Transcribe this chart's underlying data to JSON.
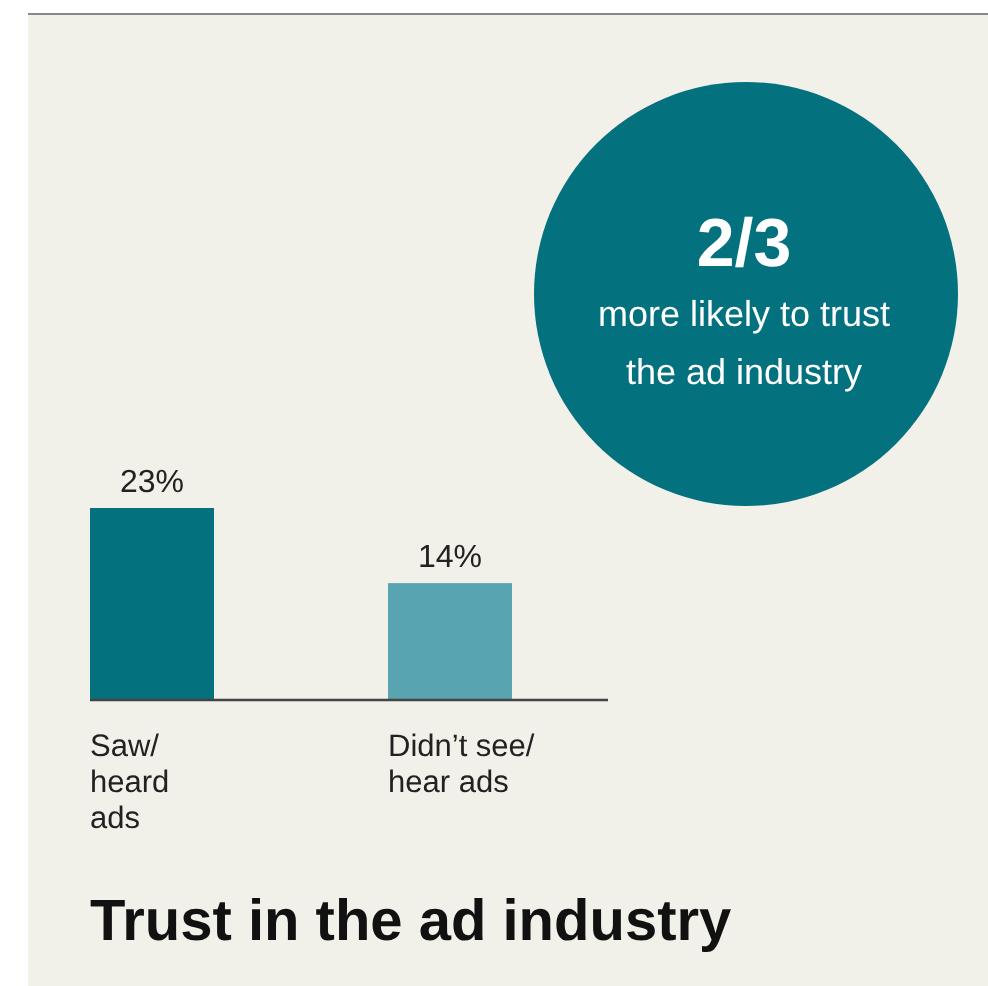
{
  "chart_data": {
    "type": "bar",
    "title": "Trust in the ad industry",
    "categories": [
      "Saw/\nheard\nads",
      "Didn’t see/\nhear ads"
    ],
    "values": [
      23,
      14
    ],
    "colors": [
      "#04717f",
      "#58a4b0"
    ],
    "value_labels": [
      "23%",
      "14%"
    ],
    "annotations": [
      "2/3",
      "more likely to trust\nthe ad industry"
    ]
  }
}
